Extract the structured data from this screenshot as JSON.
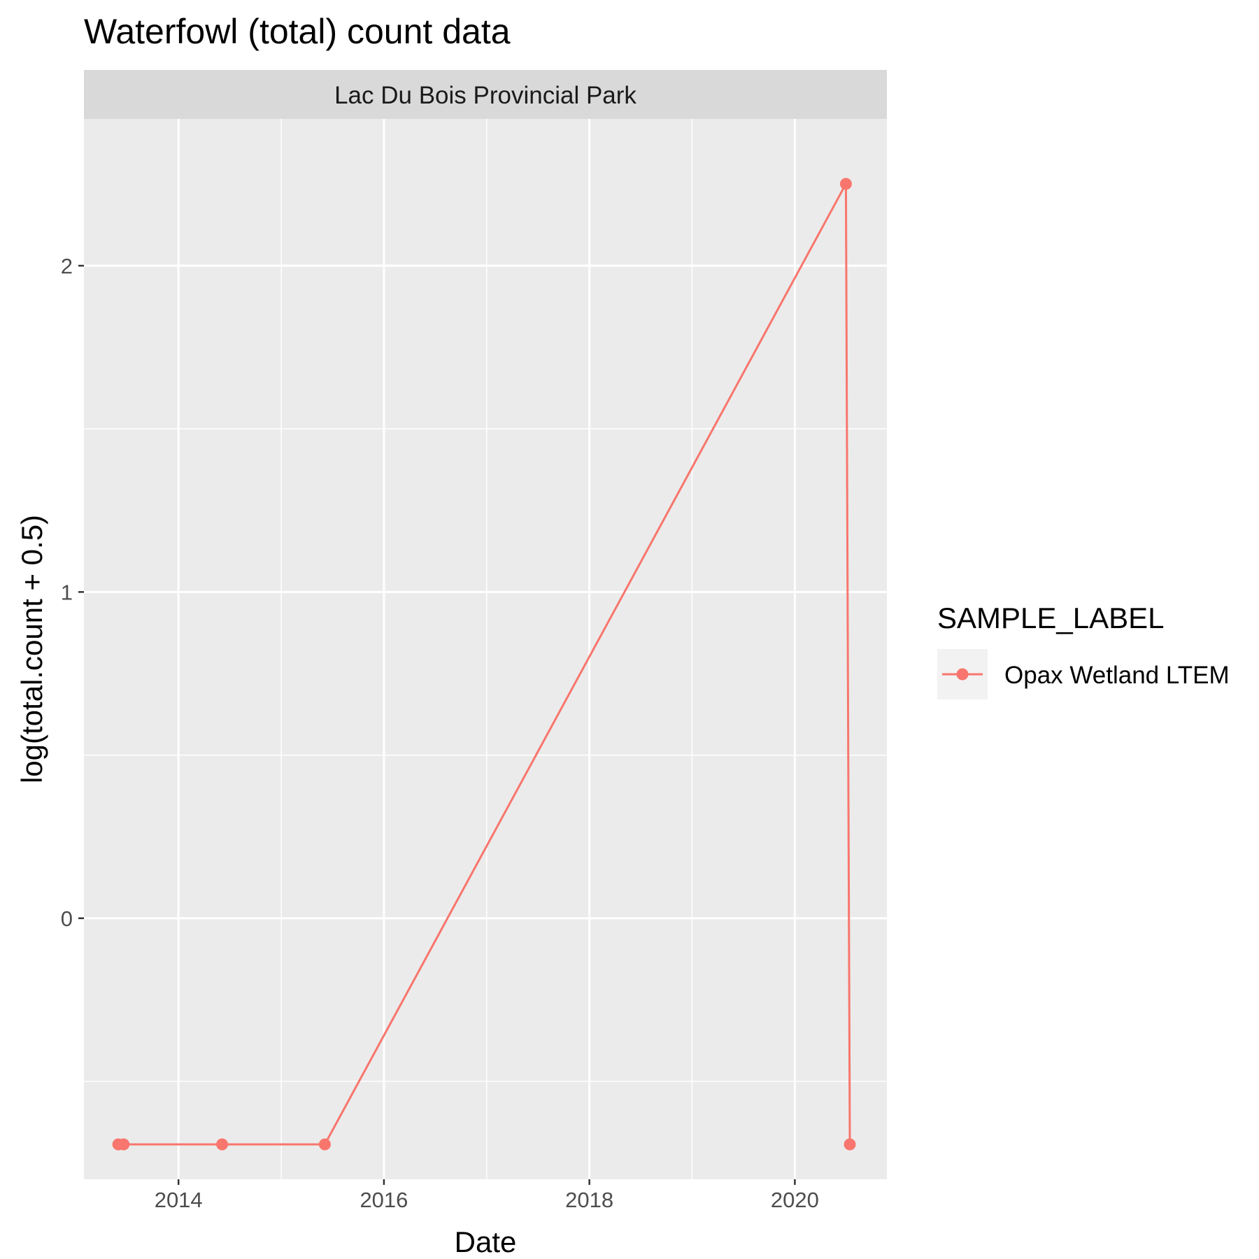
{
  "chart_data": {
    "type": "line",
    "title": "Waterfowl (total) count data",
    "facet_label": "Lac Du Bois Provincial Park",
    "xlabel": "Date",
    "ylabel": "log(total.count + 0.5)",
    "x_ticks": [
      "2014",
      "2016",
      "2018",
      "2020"
    ],
    "y_ticks": [
      "0",
      "1",
      "2"
    ],
    "y_tick_values": [
      0,
      1,
      2
    ],
    "xlim": [
      "2013-01-30",
      "2020-11-24"
    ],
    "ylim": [
      -0.8,
      2.45
    ],
    "grid": true,
    "legend_position": "right",
    "legend_title": "SAMPLE_LABEL",
    "series": [
      {
        "name": "Opax Wetland LTEM",
        "color": "#F8766D",
        "points": [
          {
            "x": "2013-06-01",
            "y": -0.693
          },
          {
            "x": "2013-06-20",
            "y": -0.693
          },
          {
            "x": "2014-06-05",
            "y": -0.693
          },
          {
            "x": "2015-06-05",
            "y": -0.693
          },
          {
            "x": "2020-07-01",
            "y": 2.251
          },
          {
            "x": "2020-07-15",
            "y": -0.693
          }
        ]
      }
    ]
  }
}
